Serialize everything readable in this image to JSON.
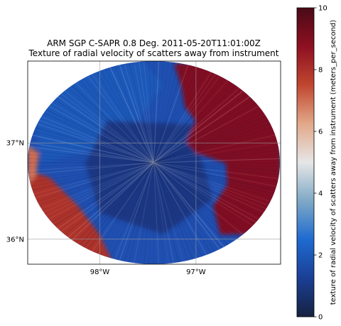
{
  "chart_data": {
    "type": "heatmap",
    "title": "ARM SGP C-SAPR 0.8 Deg. 2011-05-20T11:01:00Z",
    "subtitle": "Texture of radial velocity of scatters away from instrument",
    "x_ticks": [
      {
        "lon": -98,
        "label": "98°W"
      },
      {
        "lon": -97,
        "label": "97°W"
      }
    ],
    "y_ticks": [
      {
        "lat": 37,
        "label": "37°N"
      },
      {
        "lat": 36,
        "label": "36°N"
      }
    ],
    "extent": {
      "lon": [
        -98.75,
        -96.12
      ],
      "lat": [
        35.74,
        37.85
      ]
    },
    "grid": true,
    "colorbar": {
      "label": "texture of radial velocity of scatters away from instrument (meters_per_second)",
      "vmin": 0,
      "vmax": 10,
      "ticks": [
        {
          "value": 0,
          "label": "0"
        },
        {
          "value": 2,
          "label": "2"
        },
        {
          "value": 4,
          "label": "4"
        },
        {
          "value": 6,
          "label": "6"
        },
        {
          "value": 8,
          "label": "8"
        },
        {
          "value": 10,
          "label": "10"
        }
      ],
      "colormap": [
        "#16213f",
        "#1b3f95",
        "#1e6ad0",
        "#7fa9c6",
        "#e6e6e6",
        "#e2a88a",
        "#c0462f",
        "#8e1022",
        "#4a0a16"
      ]
    },
    "field": {
      "description_regions": [
        {
          "region": "east-northeast",
          "level": 9
        },
        {
          "region": "southwest-rim",
          "level": 8
        },
        {
          "region": "west-rim",
          "level": 7
        },
        {
          "region": "center",
          "level": 1
        },
        {
          "region": "north-west",
          "level": 2
        }
      ]
    }
  }
}
